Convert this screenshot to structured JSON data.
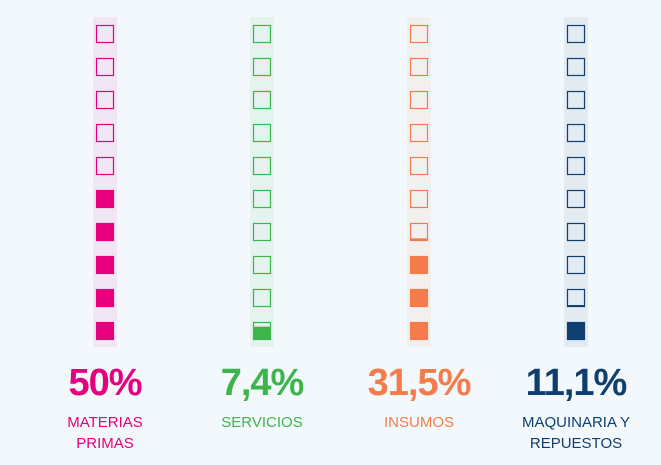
{
  "chart_data": {
    "type": "waffle",
    "categories": [
      "MATERIAS PRIMAS",
      "SERVICIOS",
      "INSUMOS",
      "MAQUINARIA Y REPUESTOS"
    ],
    "values": [
      50,
      7.4,
      31.5,
      11.1
    ],
    "value_labels": [
      "50%",
      "7,4%",
      "31,5%",
      "11,1%"
    ],
    "colors": [
      "#e6007e",
      "#3db54a",
      "#f47c4a",
      "#0f3f6e"
    ],
    "ylim": [
      0,
      100
    ]
  }
}
